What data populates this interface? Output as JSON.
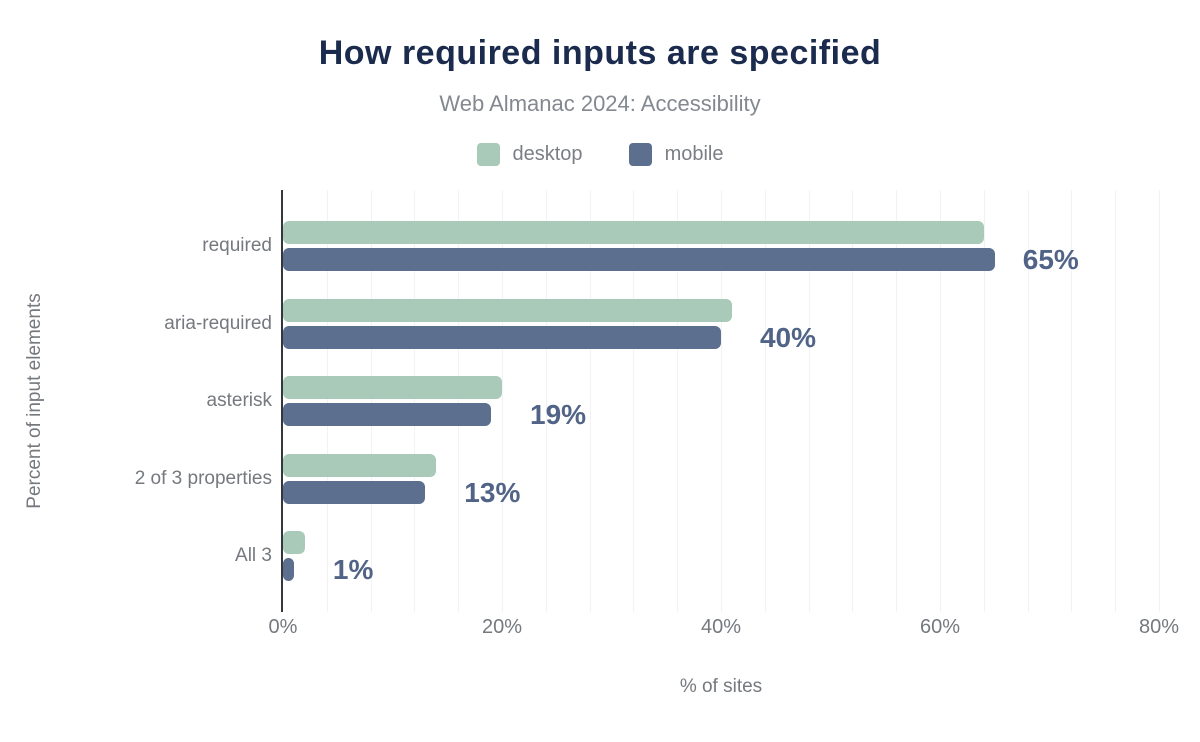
{
  "title": "How required inputs are specified",
  "subtitle": "Web Almanac 2024: Accessibility",
  "legend": [
    {
      "label": "desktop",
      "color": "#a9cab8"
    },
    {
      "label": "mobile",
      "color": "#5d6f8e"
    }
  ],
  "colors": {
    "title": "#1b2b4d",
    "subtitle": "#84888f",
    "axis_text": "#75797e",
    "data_label": "#516488",
    "axis_line": "#34383c",
    "gridline": "#f1f2f4",
    "background": "#ffffff",
    "desktop": "#a9cab8",
    "mobile": "#5d6f8e"
  },
  "chart_data": {
    "type": "bar",
    "orientation": "horizontal",
    "title": "How required inputs are specified",
    "subtitle": "Web Almanac 2024: Accessibility",
    "categories": [
      "required",
      "aria-required",
      "asterisk",
      "2 of 3 properties",
      "All 3"
    ],
    "series": [
      {
        "name": "desktop",
        "color": "#a9cab8",
        "values": [
          64,
          41,
          20,
          14,
          2
        ]
      },
      {
        "name": "mobile",
        "color": "#5d6f8e",
        "values": [
          65,
          40,
          19,
          13,
          1
        ]
      }
    ],
    "data_labels": [
      "65%",
      "40%",
      "19%",
      "13%",
      "1%"
    ],
    "xlabel": "% of sites",
    "ylabel": "Percent of input elements",
    "xlim": [
      0,
      80
    ],
    "x_ticks": [
      "0%",
      "20%",
      "40%",
      "60%",
      "80%"
    ],
    "x_tick_values": [
      0,
      20,
      40,
      60,
      80
    ],
    "grid_step": 4,
    "grid": "vertical minor gridlines every 4%",
    "legend_position": "top center"
  }
}
